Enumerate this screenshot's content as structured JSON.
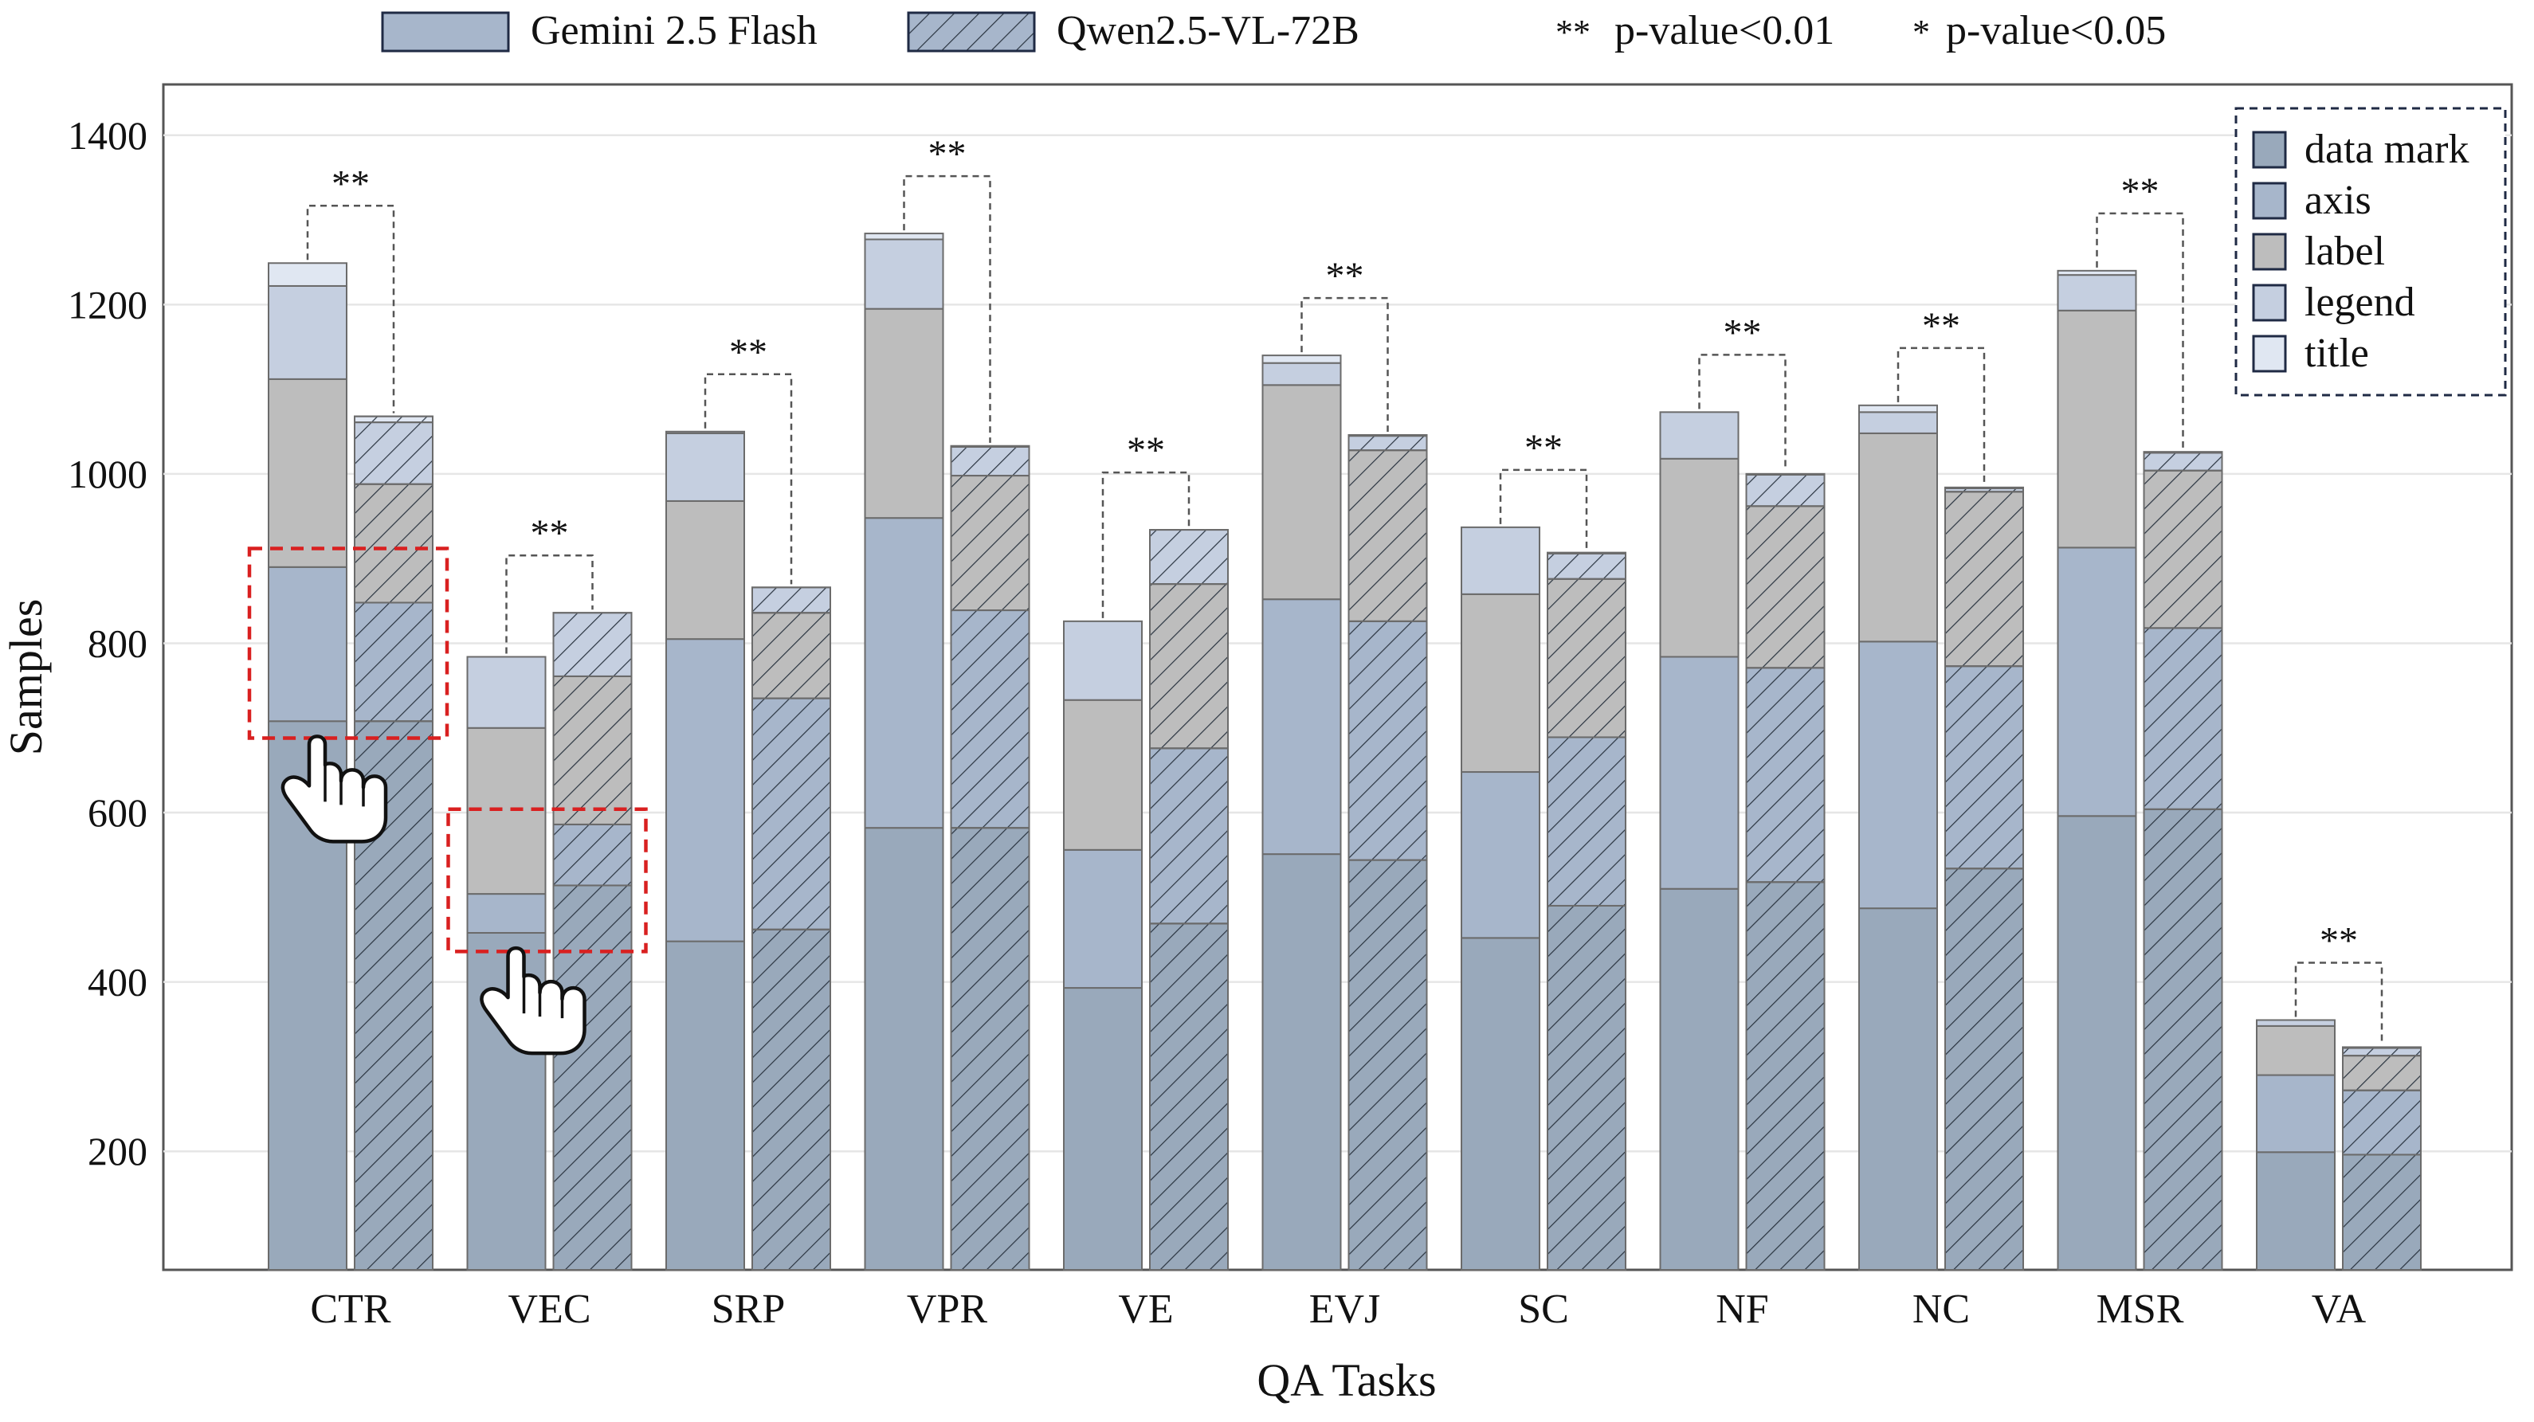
{
  "chart_data": {
    "type": "bar",
    "stacked": true,
    "grouped": true,
    "title": "",
    "xlabel": "QA Tasks",
    "ylabel": "Samples",
    "ylim": [
      60,
      1460
    ],
    "yticks": [
      200,
      400,
      600,
      800,
      1000,
      1200,
      1400
    ],
    "grid": "horizontal",
    "categories": [
      "CTR",
      "VEC",
      "SRP",
      "VPR",
      "VE",
      "EVJ",
      "SC",
      "NF",
      "NC",
      "MSR",
      "VA"
    ],
    "models": [
      {
        "name": "Gemini 2.5 Flash",
        "pattern": "solid"
      },
      {
        "name": "Qwen2.5-VL-72B",
        "pattern": "hatched"
      }
    ],
    "components": [
      "data mark",
      "axis",
      "label",
      "legend",
      "title"
    ],
    "component_colors": {
      "data mark": "#99a9bb",
      "axis": "#a7b6cb",
      "label": "#bdbdbd",
      "legend": "#c5cfe0",
      "title": "#e0e7f2"
    },
    "values_cumulative": {
      "Gemini 2.5 Flash": {
        "data mark": [
          708,
          458,
          448,
          582,
          393,
          551,
          452,
          510,
          487,
          596,
          199
        ],
        "axis": [
          890,
          504,
          805,
          948,
          556,
          852,
          648,
          784,
          802,
          913,
          290
        ],
        "label": [
          1112,
          700,
          968,
          1195,
          733,
          1105,
          858,
          1018,
          1048,
          1193,
          348
        ],
        "legend": [
          1222,
          784,
          1048,
          1277,
          826,
          1131,
          937,
          1073,
          1073,
          1235,
          355
        ],
        "title": [
          1249,
          784,
          1050,
          1284,
          826,
          1140,
          937,
          1073,
          1081,
          1240,
          355
        ]
      },
      "Qwen2.5-VL-72B": {
        "data mark": [
          708,
          514,
          462,
          582,
          469,
          544,
          490,
          518,
          534,
          604,
          196
        ],
        "axis": [
          848,
          586,
          735,
          839,
          676,
          826,
          689,
          771,
          773,
          818,
          272
        ],
        "label": [
          988,
          761,
          836,
          998,
          870,
          1028,
          876,
          962,
          979,
          1004,
          313
        ],
        "legend": [
          1061,
          836,
          866,
          1032,
          934,
          1045,
          906,
          999,
          983,
          1025,
          322
        ],
        "title": [
          1068,
          836,
          866,
          1033,
          934,
          1046,
          907,
          1000,
          984,
          1026,
          323
        ]
      }
    },
    "significance": {
      "marks": [
        "**",
        "**",
        "**",
        "**",
        "**",
        "**",
        "**",
        "**",
        "**",
        "**",
        "**"
      ]
    },
    "legend_models": {
      "items": [
        "Gemini 2.5 Flash",
        "Qwen2.5-VL-72B"
      ],
      "placement": "top"
    },
    "legend_significance": {
      "items": [
        {
          "symbol": "**",
          "text": "p-value<0.01"
        },
        {
          "symbol": "*",
          "text": "p-value<0.05"
        }
      ]
    },
    "legend_components": {
      "items": [
        "data mark",
        "axis",
        "label",
        "legend",
        "title"
      ],
      "placement": "top-right"
    },
    "annotations": [
      {
        "type": "dashed-highlight-box",
        "category": "CTR",
        "y_range": [
          688,
          912
        ],
        "color": "#d92020"
      },
      {
        "type": "dashed-highlight-box",
        "category": "VEC",
        "y_range": [
          436,
          604
        ],
        "color": "#d92020"
      },
      {
        "type": "hand-pointer-icon",
        "category": "CTR",
        "value": 690
      },
      {
        "type": "hand-pointer-icon",
        "category": "VEC",
        "value": 440
      }
    ]
  }
}
